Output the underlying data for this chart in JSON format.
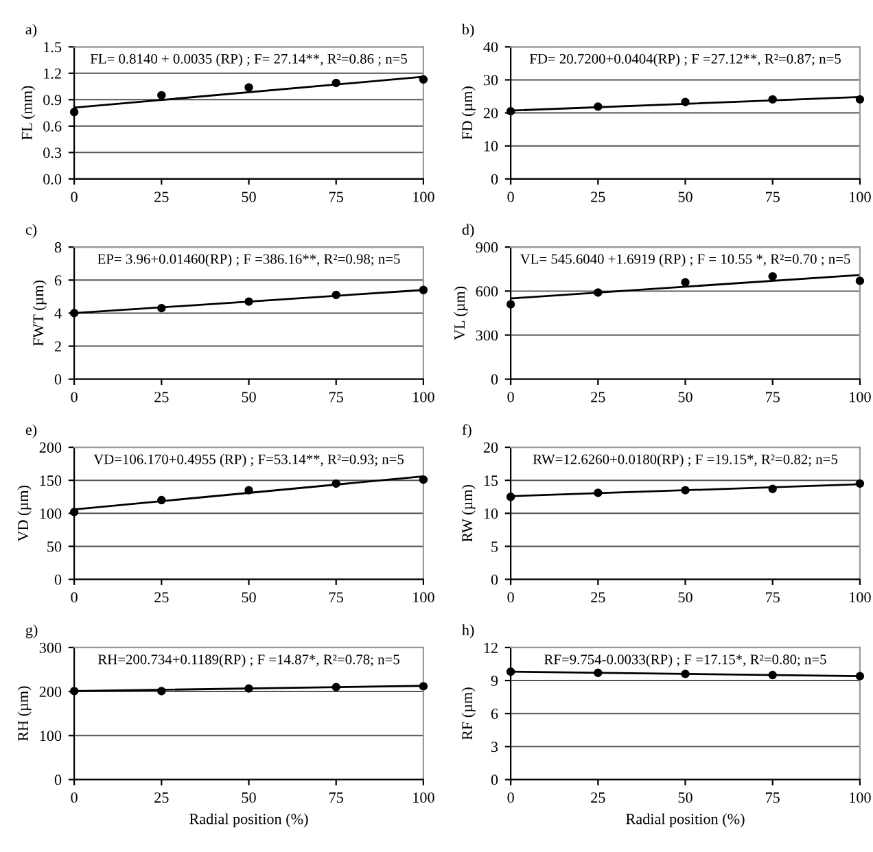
{
  "chart_data": [
    {
      "type": "scatter",
      "title": "a)",
      "ylabel": "FL (mm)",
      "annotations": [
        "FL= 0.8140 + 0.0035 (RP) ; F= 27.14**, R²=0.86 ; n=5"
      ],
      "xlim": [
        0,
        100
      ],
      "xticks": [
        0,
        25,
        50,
        75,
        100
      ],
      "ylim": [
        0,
        1.5
      ],
      "yticks": [
        {
          "value": 0,
          "label": "0.0"
        },
        {
          "value": 0.3,
          "label": "0.3"
        },
        {
          "value": 0.6,
          "label": "0.6"
        },
        {
          "value": 0.9,
          "label": "0.9"
        },
        {
          "value": 1.2,
          "label": "1.2"
        },
        {
          "value": 1.5,
          "label": "1.5"
        }
      ],
      "grid": "y",
      "series": [
        {
          "marker": "circle",
          "color": "#000000",
          "x": [
            0,
            25,
            50,
            75,
            100
          ],
          "values": [
            0.76,
            0.95,
            1.04,
            1.09,
            1.13
          ]
        },
        {
          "type": "line",
          "color": "#000000",
          "x": [
            0,
            100
          ],
          "values": [
            0.81,
            1.16
          ]
        }
      ]
    },
    {
      "type": "scatter",
      "title": "b)",
      "ylabel": "FD (µm)",
      "annotations": [
        "FD= 20.7200+0.0404(RP) ; F =27.12**, R²=0.87; n=5"
      ],
      "xlim": [
        0,
        100
      ],
      "xticks": [
        0,
        25,
        50,
        75,
        100
      ],
      "ylim": [
        0,
        40
      ],
      "yticks": [
        0,
        10,
        20,
        30,
        40
      ],
      "grid": "y",
      "series": [
        {
          "marker": "circle",
          "color": "#000000",
          "x": [
            0,
            25,
            50,
            75,
            100
          ],
          "values": [
            20.5,
            21.9,
            23.3,
            24.1,
            24.1
          ]
        },
        {
          "type": "line",
          "color": "#000000",
          "x": [
            0,
            100
          ],
          "values": [
            20.7,
            24.8
          ]
        }
      ]
    },
    {
      "type": "scatter",
      "title": "c)",
      "ylabel": "FWT (µm)",
      "annotations": [
        "EP= 3.96+0.01460(RP) ; F =386.16**, R²=0.98; n=5"
      ],
      "xlim": [
        0,
        100
      ],
      "xticks": [
        0,
        25,
        50,
        75,
        100
      ],
      "ylim": [
        0,
        8
      ],
      "yticks": [
        0,
        2,
        4,
        6,
        8
      ],
      "grid": "y",
      "series": [
        {
          "marker": "circle",
          "color": "#000000",
          "x": [
            0,
            25,
            50,
            75,
            100
          ],
          "values": [
            4.0,
            4.3,
            4.7,
            5.1,
            5.4
          ]
        },
        {
          "type": "line",
          "color": "#000000",
          "x": [
            0,
            100
          ],
          "values": [
            4.0,
            5.4
          ]
        }
      ]
    },
    {
      "type": "scatter",
      "title": "d)",
      "ylabel": "VL (µm)",
      "annotations": [
        "VL= 545.6040 +1.6919 (RP) ; F = 10.55 *, R²=0.70 ; n=5"
      ],
      "xlim": [
        0,
        100
      ],
      "xticks": [
        0,
        25,
        50,
        75,
        100
      ],
      "ylim": [
        0,
        900
      ],
      "yticks": [
        0,
        300,
        600,
        900
      ],
      "grid": "y",
      "series": [
        {
          "marker": "circle",
          "color": "#000000",
          "x": [
            0,
            25,
            50,
            75,
            100
          ],
          "values": [
            510,
            590,
            660,
            700,
            670
          ]
        },
        {
          "type": "line",
          "color": "#000000",
          "x": [
            0,
            100
          ],
          "values": [
            550,
            710
          ]
        }
      ]
    },
    {
      "type": "scatter",
      "title": "e)",
      "ylabel": "VD (µm)",
      "annotations": [
        "VD=106.170+0.4955 (RP) ; F=53.14**, R²=0.93; n=5"
      ],
      "xlim": [
        0,
        100
      ],
      "xticks": [
        0,
        25,
        50,
        75,
        100
      ],
      "ylim": [
        0,
        200
      ],
      "yticks": [
        0,
        50,
        100,
        150,
        200
      ],
      "grid": "y",
      "series": [
        {
          "marker": "circle",
          "color": "#000000",
          "x": [
            0,
            25,
            50,
            75,
            100
          ],
          "values": [
            102,
            120,
            135,
            145,
            151
          ]
        },
        {
          "type": "line",
          "color": "#000000",
          "x": [
            0,
            100
          ],
          "values": [
            106,
            156
          ]
        }
      ]
    },
    {
      "type": "scatter",
      "title": "f)",
      "ylabel": "RW (µm)",
      "annotations": [
        "RW=12.6260+0.0180(RP) ; F =19.15*, R²=0.82; n=5"
      ],
      "xlim": [
        0,
        100
      ],
      "xticks": [
        0,
        25,
        50,
        75,
        100
      ],
      "ylim": [
        0,
        20
      ],
      "yticks": [
        0,
        5,
        10,
        15,
        20
      ],
      "grid": "y",
      "series": [
        {
          "marker": "circle",
          "color": "#000000",
          "x": [
            0,
            25,
            50,
            75,
            100
          ],
          "values": [
            12.5,
            13.1,
            13.5,
            13.7,
            14.5
          ]
        },
        {
          "type": "line",
          "color": "#000000",
          "x": [
            0,
            100
          ],
          "values": [
            12.6,
            14.4
          ]
        }
      ]
    },
    {
      "type": "scatter",
      "title": "g)",
      "ylabel": "RH (µm)",
      "xlabel": "Radial position (%)",
      "annotations": [
        "RH=200.734+0.1189(RP) ; F =14.87*, R²=0.78; n=5"
      ],
      "xlim": [
        0,
        100
      ],
      "xticks": [
        0,
        25,
        50,
        75,
        100
      ],
      "ylim": [
        0,
        300
      ],
      "yticks": [
        0,
        100,
        200,
        300
      ],
      "grid": "y",
      "series": [
        {
          "marker": "circle",
          "color": "#000000",
          "x": [
            0,
            25,
            50,
            75,
            100
          ],
          "values": [
            201,
            201,
            207,
            210,
            212
          ]
        },
        {
          "type": "line",
          "color": "#000000",
          "x": [
            0,
            100
          ],
          "values": [
            201,
            213
          ]
        }
      ]
    },
    {
      "type": "scatter",
      "title": "h)",
      "ylabel": "RF (µm)",
      "xlabel": "Radial position (%)",
      "annotations": [
        "RF=9.754-0.0033(RP) ; F =17.15*, R²=0.80; n=5"
      ],
      "xlim": [
        0,
        100
      ],
      "xticks": [
        0,
        25,
        50,
        75,
        100
      ],
      "ylim": [
        0,
        12
      ],
      "yticks": [
        0,
        3,
        6,
        9,
        12
      ],
      "grid": "y",
      "series": [
        {
          "marker": "circle",
          "color": "#000000",
          "x": [
            0,
            25,
            50,
            75,
            100
          ],
          "values": [
            9.8,
            9.7,
            9.6,
            9.5,
            9.4
          ]
        },
        {
          "type": "line",
          "color": "#000000",
          "x": [
            0,
            100
          ],
          "values": [
            9.8,
            9.4
          ]
        }
      ]
    }
  ]
}
